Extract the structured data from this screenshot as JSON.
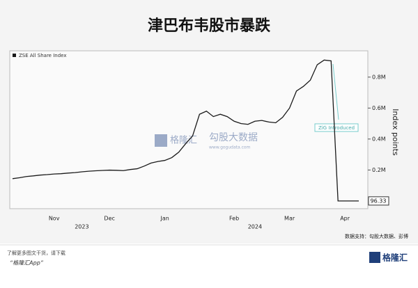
{
  "chart_data": {
    "type": "line",
    "title": "津巴布韦股市暴跌",
    "categories": [
      null,
      null,
      null,
      null,
      null,
      null,
      "Nov",
      null,
      null,
      null,
      null,
      null,
      null,
      null,
      "Dec",
      null,
      null,
      null,
      null,
      null,
      null,
      null,
      "Jan",
      null,
      null,
      null,
      null,
      null,
      null,
      null,
      null,
      null,
      "Feb",
      null,
      null,
      null,
      null,
      null,
      null,
      null,
      "Mar",
      null,
      null,
      null,
      null,
      null,
      null,
      null,
      "Apr",
      null,
      null
    ],
    "category_groups": [
      null,
      null,
      null,
      null,
      null,
      null,
      null,
      null,
      null,
      null,
      "2023",
      null,
      null,
      null,
      null,
      null,
      null,
      null,
      null,
      null,
      null,
      null,
      null,
      null,
      null,
      null,
      null,
      null,
      null,
      null,
      null,
      null,
      null,
      null,
      null,
      "2024",
      null,
      null,
      null,
      null,
      null,
      null,
      null,
      null,
      null,
      null,
      null,
      null,
      null,
      null,
      null
    ],
    "series": [
      {
        "name": "ZSE All Share Index",
        "color": "#1a1a1a",
        "values": [
          144000,
          150000,
          158000,
          162000,
          167000,
          170000,
          174000,
          176000,
          180000,
          183000,
          188000,
          192000,
          195000,
          197000,
          199000,
          198000,
          196000,
          203000,
          208000,
          225000,
          245000,
          255000,
          262000,
          280000,
          315000,
          370000,
          420000,
          560000,
          580000,
          545000,
          560000,
          545000,
          515000,
          500000,
          495000,
          515000,
          520000,
          510000,
          505000,
          540000,
          600000,
          710000,
          740000,
          780000,
          880000,
          910000,
          905000,
          96,
          96,
          96,
          96.33
        ]
      }
    ],
    "y_label": "Index points",
    "ylim": [
      -50000,
      970000
    ],
    "yticks": [
      {
        "value": 200000,
        "label": "0.2M"
      },
      {
        "value": 400000,
        "label": "0.4M"
      },
      {
        "value": 600000,
        "label": "0.6M"
      },
      {
        "value": 800000,
        "label": "0.8M"
      }
    ],
    "annotation": "ZiG Introduced",
    "source": "数据支持：勾股大数据、彭博"
  },
  "watermark": {
    "brand": "格隆汇",
    "name": "勾股大数据",
    "url": "www.gogudata.com"
  },
  "footer": {
    "line1": "了解更多图文干货，请下载",
    "line2": "“格隆汇App”",
    "logo": "格隆汇"
  }
}
